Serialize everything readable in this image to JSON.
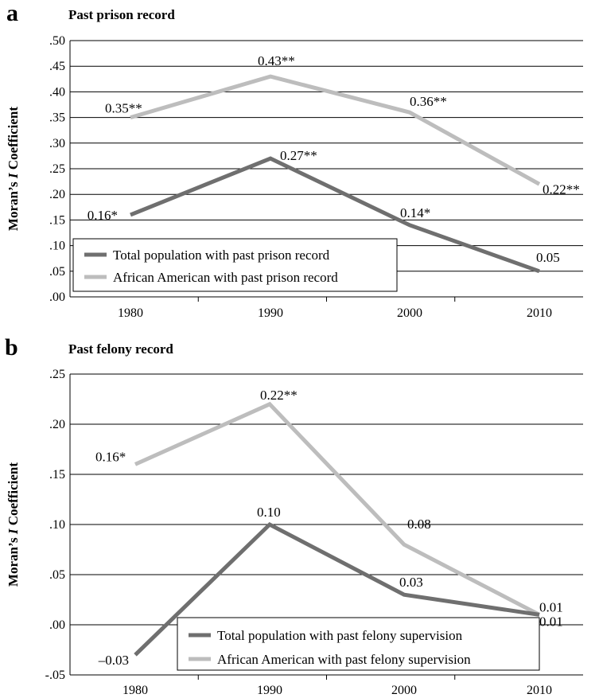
{
  "chart_data": [
    {
      "type": "line",
      "panel": "a",
      "title": "Past prison record",
      "ylabel": "Moran’s I Coefficient",
      "ylabel_parts": [
        "Moran’s ",
        "I",
        " Coefficient"
      ],
      "xlabel": "",
      "categories": [
        "1980",
        "1990",
        "2000",
        "2010"
      ],
      "ylim": [
        0,
        0.5
      ],
      "yticks": [
        ".00",
        ".05",
        ".10",
        ".15",
        ".20",
        ".25",
        ".30",
        ".35",
        ".40",
        ".45",
        ".50"
      ],
      "grid": true,
      "legend_position": "bottom-left",
      "series": [
        {
          "name": "Total population with past prison record",
          "values": [
            0.16,
            0.27,
            0.14,
            0.05
          ],
          "labels": [
            "0.16*",
            "0.27**",
            "0.14*",
            "0.05"
          ],
          "color": "#6f6f6f"
        },
        {
          "name": "African American with past prison record",
          "values": [
            0.35,
            0.43,
            0.36,
            0.22
          ],
          "labels": [
            "0.35**",
            "0.43**",
            "0.36**",
            "0.22**"
          ],
          "color": "#bdbdbd"
        }
      ]
    },
    {
      "type": "line",
      "panel": "b",
      "title": "Past felony record",
      "ylabel": "Moran’s I Coefficient",
      "ylabel_parts": [
        "Moran’s ",
        "I",
        " Coefficient"
      ],
      "xlabel": "",
      "categories": [
        "1980",
        "1990",
        "2000",
        "2010"
      ],
      "ylim": [
        -0.05,
        0.25
      ],
      "yticks": [
        "-.05",
        ".00",
        ".05",
        ".10",
        ".15",
        ".20",
        ".25"
      ],
      "grid": true,
      "legend_position": "bottom-center",
      "series": [
        {
          "name": "Total population with past felony supervision",
          "values": [
            -0.03,
            0.1,
            0.03,
            0.01
          ],
          "labels": [
            "–0.03",
            "0.10",
            "0.03",
            "0.01"
          ],
          "color": "#6f6f6f"
        },
        {
          "name": "African American with past felony supervision",
          "values": [
            0.16,
            0.22,
            0.08,
            0.01
          ],
          "labels": [
            "0.16*",
            "0.22**",
            "0.08",
            "0.01"
          ],
          "color": "#bdbdbd"
        }
      ]
    }
  ]
}
